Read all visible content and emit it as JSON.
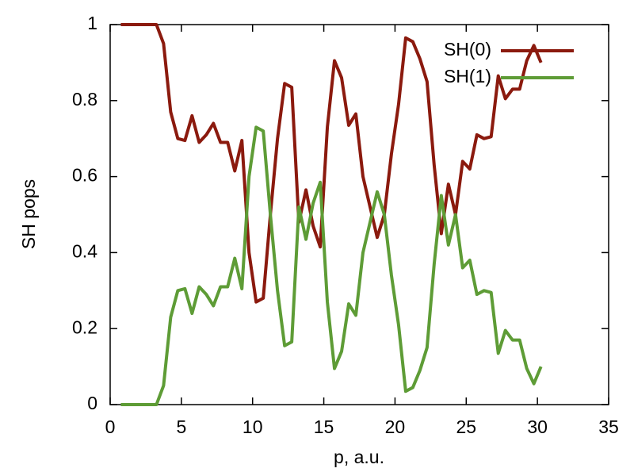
{
  "chart_data": {
    "type": "line",
    "xlabel": "p, a.u.",
    "ylabel": "SH pops",
    "x": [
      0.75,
      1.25,
      1.75,
      2.25,
      2.75,
      3.25,
      3.75,
      4.25,
      4.75,
      5.25,
      5.75,
      6.25,
      6.75,
      7.25,
      7.75,
      8.25,
      8.75,
      9.25,
      9.75,
      10.25,
      10.75,
      11.25,
      11.75,
      12.25,
      12.75,
      13.25,
      13.75,
      14.25,
      14.75,
      15.25,
      15.75,
      16.25,
      16.75,
      17.25,
      17.75,
      18.25,
      18.75,
      19.25,
      19.75,
      20.25,
      20.75,
      21.25,
      21.75,
      22.25,
      22.75,
      23.25,
      23.75,
      24.25,
      24.75,
      25.25,
      25.75,
      26.25,
      26.75,
      27.25,
      27.75,
      28.25,
      28.75,
      29.25,
      29.75,
      30.25
    ],
    "series": [
      {
        "name": "SH(0)",
        "color": "#8b1a0e",
        "values": [
          1,
          1,
          1,
          1,
          1,
          1,
          0.95,
          0.77,
          0.7,
          0.695,
          0.76,
          0.69,
          0.71,
          0.74,
          0.69,
          0.69,
          0.615,
          0.695,
          0.4,
          0.27,
          0.28,
          0.5,
          0.7,
          0.845,
          0.835,
          0.48,
          0.565,
          0.47,
          0.415,
          0.73,
          0.905,
          0.86,
          0.735,
          0.765,
          0.6,
          0.52,
          0.44,
          0.5,
          0.66,
          0.79,
          0.965,
          0.955,
          0.91,
          0.85,
          0.63,
          0.45,
          0.58,
          0.5,
          0.64,
          0.62,
          0.71,
          0.7,
          0.705,
          0.865,
          0.805,
          0.83,
          0.83,
          0.905,
          0.945,
          0.9
        ]
      },
      {
        "name": "SH(1)",
        "color": "#5e9c36",
        "values": [
          0,
          0,
          0,
          0,
          0,
          0,
          0.05,
          0.23,
          0.3,
          0.305,
          0.24,
          0.31,
          0.29,
          0.26,
          0.31,
          0.31,
          0.385,
          0.305,
          0.6,
          0.73,
          0.72,
          0.5,
          0.3,
          0.155,
          0.165,
          0.52,
          0.435,
          0.53,
          0.585,
          0.27,
          0.095,
          0.14,
          0.265,
          0.235,
          0.4,
          0.48,
          0.56,
          0.5,
          0.34,
          0.21,
          0.035,
          0.045,
          0.09,
          0.15,
          0.37,
          0.55,
          0.42,
          0.5,
          0.36,
          0.38,
          0.29,
          0.3,
          0.295,
          0.135,
          0.195,
          0.17,
          0.17,
          0.095,
          0.055,
          0.1
        ]
      }
    ],
    "xlim": [
      0,
      35
    ],
    "xticks": [
      0,
      5,
      10,
      15,
      20,
      25,
      30,
      35
    ],
    "ylim": [
      0,
      1
    ],
    "yticks": [
      0,
      0.2,
      0.4,
      0.6,
      0.8,
      1
    ],
    "legend": "top-right"
  }
}
